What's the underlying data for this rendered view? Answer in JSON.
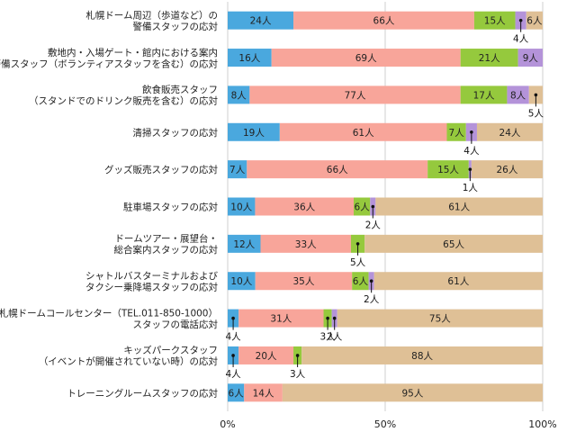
{
  "chart_data": {
    "type": "bar",
    "orientation": "horizontal",
    "stacked": "percent",
    "categories": [
      [
        "札幌ドーム周辺（歩道など）の",
        "警備スタッフの応対"
      ],
      [
        "敷地内・入場ゲート・館内における案内",
        "警備スタッフ（ボランティアスタッフを含む）の応対"
      ],
      [
        "飲食販売スタッフ",
        "（スタンドでのドリンク販売を含む）の応対"
      ],
      [
        "清掃スタッフの応対"
      ],
      [
        "グッズ販売スタッフの応対"
      ],
      [
        "駐車場スタッフの応対"
      ],
      [
        "ドームツアー・展望台・",
        "総合案内スタッフの応対"
      ],
      [
        "シャトルバスターミナルおよび",
        "タクシー乗降場スタッフの応対"
      ],
      [
        "札幌ドームコールセンター（TEL.011-850-1000）",
        "スタッフの電話応対"
      ],
      [
        "キッズパークスタッフ",
        "（イベントが開催されていない時）の応対"
      ],
      [
        "トレーニングルームスタッフの応対"
      ]
    ],
    "series": [
      {
        "color": "#4aa8de",
        "values": [
          24,
          16,
          8,
          19,
          7,
          10,
          12,
          10,
          4,
          4,
          6
        ]
      },
      {
        "color": "#f8a59a",
        "values": [
          66,
          69,
          77,
          61,
          66,
          36,
          33,
          35,
          31,
          20,
          14
        ]
      },
      {
        "color": "#95c93d",
        "values": [
          15,
          21,
          17,
          7,
          15,
          6,
          5,
          6,
          3,
          3,
          0
        ]
      },
      {
        "color": "#b493d9",
        "values": [
          4,
          9,
          8,
          4,
          1,
          2,
          0,
          2,
          2,
          0,
          0
        ]
      },
      {
        "color": "#dfc096",
        "values": [
          6,
          0,
          5,
          24,
          26,
          61,
          65,
          61,
          75,
          88,
          95
        ]
      }
    ],
    "value_suffix": "人",
    "xticks": [
      "0%",
      "50%",
      "100%"
    ],
    "xlim": [
      0,
      100
    ]
  }
}
